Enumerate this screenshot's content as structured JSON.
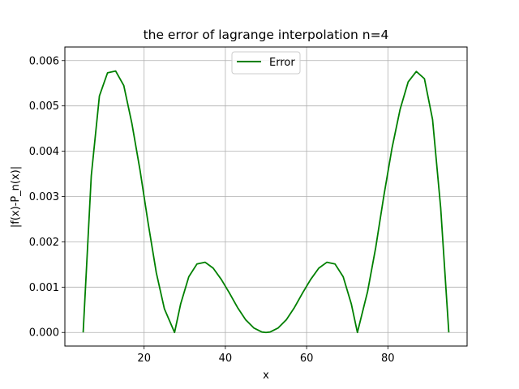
{
  "chart_data": {
    "type": "line",
    "title": "the error of lagrange interpolation n=4",
    "xlabel": "x",
    "ylabel": "|f(x)-P_n(x)|",
    "xlim": [
      0.5,
      99.5
    ],
    "ylim": [
      -0.0003,
      0.0063
    ],
    "xticks": [
      20,
      40,
      60,
      80
    ],
    "yticks": [
      0.0,
      0.001,
      0.002,
      0.003,
      0.004,
      0.005,
      0.006
    ],
    "ytick_labels": [
      "0.000",
      "0.001",
      "0.002",
      "0.003",
      "0.004",
      "0.005",
      "0.006"
    ],
    "grid": true,
    "legend": "upper center",
    "series": [
      {
        "name": "Error",
        "color": "#008000",
        "x": [
          5,
          7,
          9,
          11,
          13,
          15,
          17,
          19,
          21,
          23,
          25,
          27.5,
          29,
          31,
          33,
          35,
          37,
          39,
          41,
          43,
          45,
          47,
          49,
          50,
          51,
          53,
          55,
          57,
          59,
          61,
          63,
          65,
          67,
          69,
          71,
          72.5,
          75,
          77,
          79,
          81,
          83,
          85,
          87,
          89,
          91,
          93,
          95
        ],
        "y": [
          0.0,
          0.00346,
          0.00522,
          0.00573,
          0.00577,
          0.00545,
          0.00461,
          0.00358,
          0.00241,
          0.00132,
          0.00052,
          0.0,
          0.00063,
          0.00123,
          0.00151,
          0.00155,
          0.00142,
          0.00117,
          0.00087,
          0.00055,
          0.00028,
          0.0001,
          1e-05,
          0.0,
          1e-05,
          0.0001,
          0.00028,
          0.00055,
          0.00087,
          0.00117,
          0.00142,
          0.00155,
          0.00151,
          0.00123,
          0.00063,
          0.0,
          0.0009,
          0.00187,
          0.00301,
          0.00406,
          0.00492,
          0.00553,
          0.00576,
          0.0056,
          0.0047,
          0.00275,
          0.0
        ]
      }
    ]
  }
}
